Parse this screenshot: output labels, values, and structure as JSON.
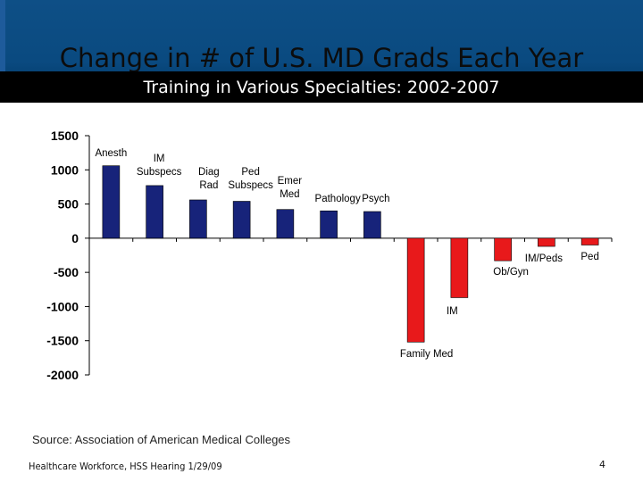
{
  "slide": {
    "title": "Change in # of U.S. MD Grads Each Year",
    "subtitle": "Training in Various Specialties: 2002-2007",
    "source": "Source: Association of American Medical Colleges",
    "footer": "Healthcare Workforce, HSS Hearing 1/29/09",
    "page_number": "4"
  },
  "colors": {
    "positive": "#17237a",
    "negative": "#e8191b",
    "header_blue": "#0e4f86"
  },
  "chart_data": {
    "type": "bar",
    "title": "",
    "xlabel": "",
    "ylabel": "",
    "ylim": [
      -2000,
      1500
    ],
    "yticks": [
      1500,
      1000,
      500,
      0,
      -500,
      -1000,
      -1500,
      -2000
    ],
    "ytick_labels": [
      "1500",
      "1000",
      "500",
      "0",
      "-500",
      "-1000",
      "-1500",
      "-2000"
    ],
    "grid": false,
    "categories": [
      {
        "label": [
          "Anesth"
        ],
        "value": 1060
      },
      {
        "label": [
          "IM",
          "Subspecs"
        ],
        "value": 770
      },
      {
        "label": [
          "Diag",
          "Rad"
        ],
        "value": 560
      },
      {
        "label": [
          "Ped",
          "Subspecs"
        ],
        "value": 540
      },
      {
        "label": [
          "Emer",
          "Med"
        ],
        "value": 420
      },
      {
        "label": [
          "Pathology"
        ],
        "value": 400
      },
      {
        "label": [
          "Psych"
        ],
        "value": 390
      },
      {
        "label": [
          "Family Med"
        ],
        "value": -1520
      },
      {
        "label": [
          "IM"
        ],
        "value": -870
      },
      {
        "label": [
          "Ob/Gyn"
        ],
        "value": -330
      },
      {
        "label": [
          "IM/Peds"
        ],
        "value": -120
      },
      {
        "label": [
          "Ped"
        ],
        "value": -100
      }
    ]
  }
}
